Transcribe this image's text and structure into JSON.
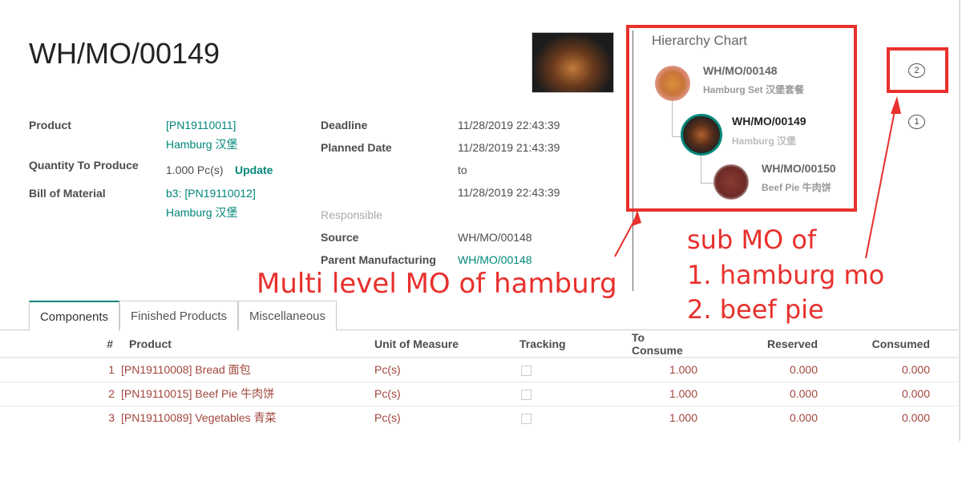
{
  "record": {
    "title": "WH/MO/00149"
  },
  "fields": {
    "product_label": "Product",
    "product_value_1": "[PN19110011]",
    "product_value_2": "Hamburg 汉堡",
    "qty_label": "Quantity To Produce",
    "qty_value": "1.000 Pc(s)",
    "qty_update": "Update",
    "bom_label": "Bill of Material",
    "bom_value_1": "b3: [PN19110012]",
    "bom_value_2": "Hamburg 汉堡",
    "deadline_label": "Deadline",
    "deadline_value": "11/28/2019 22:43:39",
    "planned_label": "Planned Date",
    "planned_from": "11/28/2019 21:43:39",
    "planned_to_word": "to",
    "planned_to": "11/28/2019 22:43:39",
    "responsible_label": "Responsible",
    "source_label": "Source",
    "source_value": "WH/MO/00148",
    "parent_label": "Parent Manufacturing",
    "parent_value": "WH/MO/00148"
  },
  "hierarchy": {
    "title": "Hierarchy Chart",
    "nodes": [
      {
        "name": "WH/MO/00148",
        "product": "Hamburg Set 汉堡套餐"
      },
      {
        "name": "WH/MO/00149",
        "product": "Hamburg 汉堡"
      },
      {
        "name": "WH/MO/00150",
        "product": "Beef Pie 牛肉饼"
      }
    ]
  },
  "side_markers": [
    "2",
    "1"
  ],
  "annotations": {
    "multi": "Multi level MO of  hamburg",
    "sub_1": "sub MO of",
    "sub_2": "1. hamburg mo",
    "sub_3": "2. beef pie",
    "color": "#e8302c"
  },
  "tabs": [
    "Components",
    "Finished Products",
    "Miscellaneous"
  ],
  "table": {
    "headers": [
      "#",
      "Product",
      "Unit of Measure",
      "Tracking",
      "To Consume",
      "Reserved",
      "Consumed"
    ],
    "rows": [
      {
        "n": "1",
        "product": "[PN19110008] Bread 面包",
        "uom": "Pc(s)",
        "to_consume": "1.000",
        "reserved": "0.000",
        "consumed": "0.000"
      },
      {
        "n": "2",
        "product": "[PN19110015] Beef Pie 牛肉饼",
        "uom": "Pc(s)",
        "to_consume": "1.000",
        "reserved": "0.000",
        "consumed": "0.000"
      },
      {
        "n": "3",
        "product": "[PN19110089] Vegetables 青菜",
        "uom": "Pc(s)",
        "to_consume": "1.000",
        "reserved": "0.000",
        "consumed": "0.000"
      }
    ]
  }
}
